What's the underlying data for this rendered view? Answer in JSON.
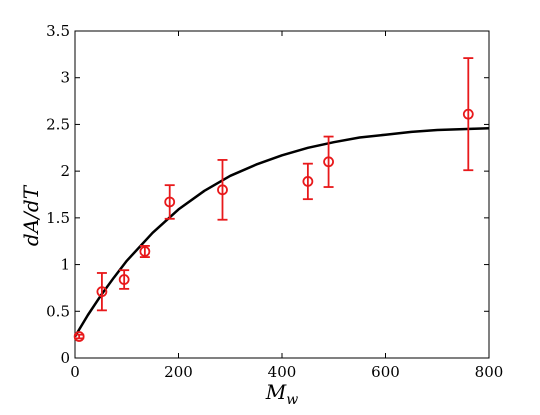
{
  "chart_data": {
    "type": "scatter",
    "title": "",
    "xlabel": "M_w",
    "ylabel": "dA/dT",
    "xlim": [
      0,
      800
    ],
    "ylim": [
      0,
      3.5
    ],
    "grid": false,
    "x_ticks": [
      0,
      200,
      400,
      600,
      800
    ],
    "x_tick_labels": [
      "0",
      "200",
      "400",
      "600",
      "800"
    ],
    "y_ticks": [
      0,
      0.5,
      1,
      1.5,
      2,
      2.5,
      3,
      3.5
    ],
    "y_tick_labels": [
      "0",
      "0.5",
      "1",
      "1.5",
      "2",
      "2.5",
      "3",
      "3.5"
    ],
    "series": [
      {
        "kind": "points_with_error_bars",
        "color": "#e8191b",
        "marker": "open-circle",
        "x": [
          8,
          52,
          95,
          135,
          183,
          285,
          450,
          490,
          760
        ],
        "y": [
          0.23,
          0.71,
          0.84,
          1.14,
          1.67,
          1.8,
          1.89,
          2.1,
          2.61
        ],
        "err_low": [
          0.02,
          0.2,
          0.1,
          0.06,
          0.18,
          0.32,
          0.19,
          0.27,
          0.6
        ],
        "err_high": [
          0.02,
          0.2,
          0.1,
          0.06,
          0.18,
          0.32,
          0.19,
          0.27,
          0.6
        ]
      },
      {
        "kind": "fit_curve",
        "color": "#000000",
        "x": [
          0,
          25,
          50,
          75,
          100,
          150,
          200,
          250,
          300,
          350,
          400,
          450,
          500,
          550,
          600,
          650,
          700,
          750,
          800
        ],
        "y": [
          0.23,
          0.46,
          0.67,
          0.86,
          1.04,
          1.34,
          1.59,
          1.79,
          1.95,
          2.07,
          2.17,
          2.25,
          2.31,
          2.36,
          2.39,
          2.42,
          2.44,
          2.45,
          2.46
        ]
      }
    ]
  }
}
